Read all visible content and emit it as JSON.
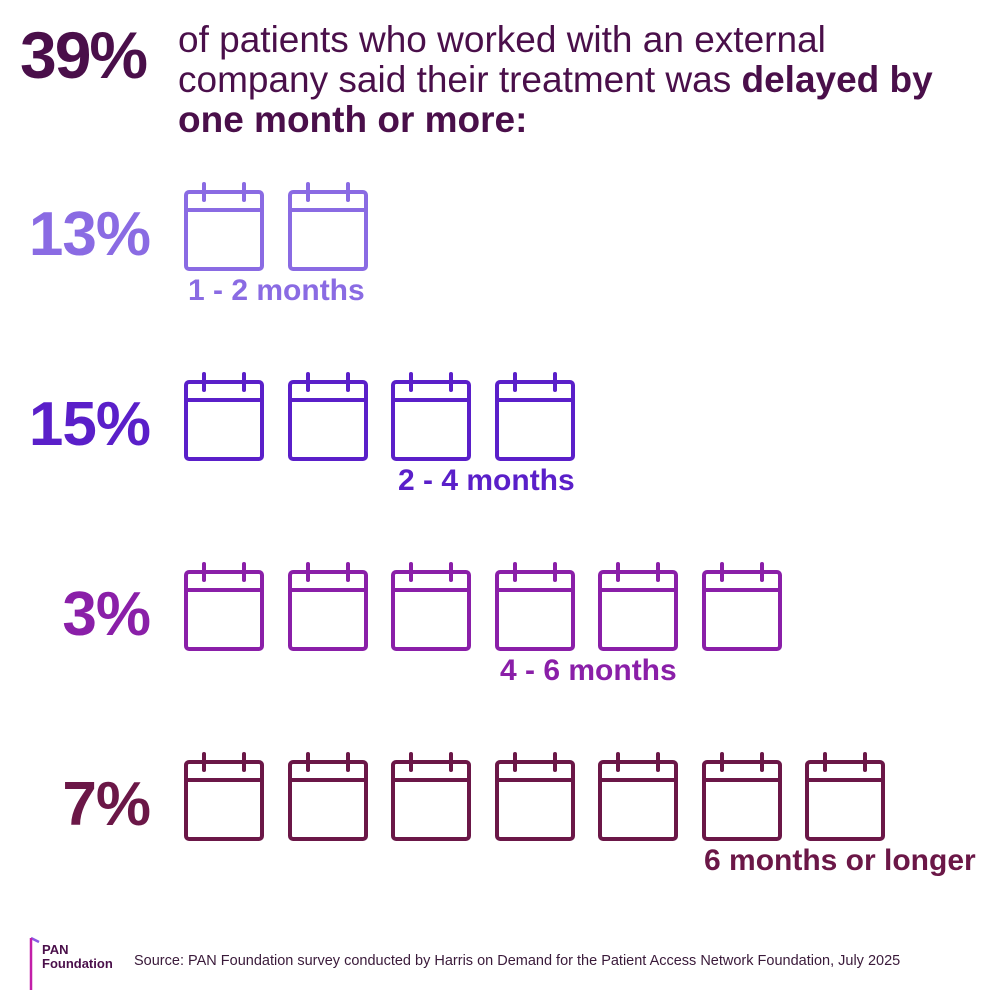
{
  "headline": {
    "percent": "39%",
    "text_before": "of patients who worked with an external company said their treatment was ",
    "text_bold": "delayed by one month or more:"
  },
  "rows": [
    {
      "percent": "13%",
      "label": "1 - 2 months",
      "calendars": 2,
      "color": "#8a6be3"
    },
    {
      "percent": "15%",
      "label": "2 - 4 months",
      "calendars": 4,
      "color": "#5a1fc9"
    },
    {
      "percent": "3%",
      "label": "4 - 6 months",
      "calendars": 6,
      "color": "#8a1fa8"
    },
    {
      "percent": "7%",
      "label": "6 months or longer",
      "calendars": 7,
      "color": "#6b1747"
    }
  ],
  "logo": {
    "line1": "PAN",
    "line2": "Foundation"
  },
  "source": "Source: PAN Foundation survey conducted by Harris on Demand for the Patient Access Network Foundation, July 2025",
  "colors": {
    "headline": "#4a0f4a",
    "logo_bar_top": "#8a5be3",
    "logo_bar_bottom": "#c21fa8"
  }
}
